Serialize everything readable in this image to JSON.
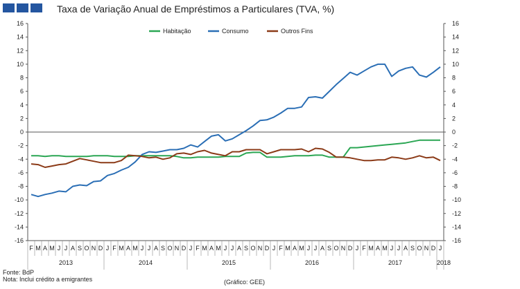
{
  "header": {
    "title": "Taxa de Variação Anual de Empréstimos a Particulares (TVA, %)"
  },
  "footer": {
    "source": "Fonte: BdP",
    "note": "Nota: Inclui crédito a emigrantes",
    "credit": "(Gráfico: GEE)"
  },
  "chart_data": {
    "type": "line",
    "title": "Taxa de Variação Anual de Empréstimos a Particulares (TVA, %)",
    "ylim": [
      -16,
      16
    ],
    "ytick_step": 2,
    "grid": false,
    "legend_position": "top",
    "month_labels": [
      "F",
      "M",
      "A",
      "M",
      "J",
      "J",
      "A",
      "S",
      "O",
      "N",
      "D",
      "J",
      "F",
      "M",
      "A",
      "M",
      "J",
      "J",
      "A",
      "S",
      "O",
      "N",
      "D",
      "J",
      "F",
      "M",
      "A",
      "M",
      "J",
      "J",
      "A",
      "S",
      "O",
      "N",
      "D",
      "J",
      "F",
      "M",
      "A",
      "M",
      "J",
      "J",
      "A",
      "S",
      "O",
      "N",
      "D",
      "J",
      "F",
      "M",
      "A",
      "M",
      "J",
      "J",
      "A",
      "S",
      "O",
      "N",
      "D",
      "J"
    ],
    "year_labels": [
      "2013",
      "2014",
      "2015",
      "2016",
      "2017",
      "2018"
    ],
    "x": [
      "2013-02",
      "2013-03",
      "2013-04",
      "2013-05",
      "2013-06",
      "2013-07",
      "2013-08",
      "2013-09",
      "2013-10",
      "2013-11",
      "2013-12",
      "2014-01",
      "2014-02",
      "2014-03",
      "2014-04",
      "2014-05",
      "2014-06",
      "2014-07",
      "2014-08",
      "2014-09",
      "2014-10",
      "2014-11",
      "2014-12",
      "2015-01",
      "2015-02",
      "2015-03",
      "2015-04",
      "2015-05",
      "2015-06",
      "2015-07",
      "2015-08",
      "2015-09",
      "2015-10",
      "2015-11",
      "2015-12",
      "2016-01",
      "2016-02",
      "2016-03",
      "2016-04",
      "2016-05",
      "2016-06",
      "2016-07",
      "2016-08",
      "2016-09",
      "2016-10",
      "2016-11",
      "2016-12",
      "2017-01",
      "2017-02",
      "2017-03",
      "2017-04",
      "2017-05",
      "2017-06",
      "2017-07",
      "2017-08",
      "2017-09",
      "2017-10",
      "2017-11",
      "2017-12",
      "2018-01"
    ],
    "series": [
      {
        "name": "Habitação",
        "color": "#2aa653",
        "values": [
          -3.5,
          -3.5,
          -3.6,
          -3.5,
          -3.5,
          -3.6,
          -3.6,
          -3.6,
          -3.6,
          -3.5,
          -3.5,
          -3.5,
          -3.6,
          -3.6,
          -3.6,
          -3.5,
          -3.5,
          -3.5,
          -3.5,
          -3.5,
          -3.5,
          -3.6,
          -3.8,
          -3.8,
          -3.7,
          -3.7,
          -3.7,
          -3.7,
          -3.6,
          -3.6,
          -3.6,
          -3.1,
          -3.0,
          -3.0,
          -3.7,
          -3.7,
          -3.7,
          -3.6,
          -3.5,
          -3.5,
          -3.5,
          -3.4,
          -3.4,
          -3.7,
          -3.7,
          -3.7,
          -2.3,
          -2.3,
          -2.2,
          -2.1,
          -2.0,
          -1.9,
          -1.8,
          -1.7,
          -1.6,
          -1.4,
          -1.2,
          -1.2,
          -1.2,
          -1.2
        ]
      },
      {
        "name": "Consumo",
        "color": "#2a6eb5",
        "values": [
          -9.2,
          -9.5,
          -9.2,
          -9.0,
          -8.7,
          -8.8,
          -8.0,
          -7.8,
          -7.9,
          -7.3,
          -7.2,
          -6.4,
          -6.1,
          -5.6,
          -5.2,
          -4.4,
          -3.3,
          -2.9,
          -3.0,
          -2.8,
          -2.6,
          -2.6,
          -2.4,
          -1.9,
          -2.2,
          -1.4,
          -0.6,
          -0.4,
          -1.3,
          -1.0,
          -0.4,
          0.2,
          0.9,
          1.7,
          1.8,
          2.2,
          2.8,
          3.5,
          3.5,
          3.7,
          5.1,
          5.2,
          5.0,
          6.0,
          7.0,
          7.9,
          8.8,
          8.4,
          9.0,
          9.6,
          10.0,
          10.0,
          8.2,
          9.0,
          9.4,
          9.6,
          8.4,
          8.1,
          8.8,
          9.6
        ]
      },
      {
        "name": "Outros Fins",
        "color": "#8b3a17",
        "values": [
          -4.7,
          -4.8,
          -5.2,
          -5.0,
          -4.8,
          -4.7,
          -4.3,
          -3.9,
          -4.1,
          -4.3,
          -4.5,
          -4.5,
          -4.5,
          -4.2,
          -3.4,
          -3.5,
          -3.6,
          -3.8,
          -3.7,
          -4.0,
          -3.8,
          -3.2,
          -3.1,
          -3.3,
          -2.9,
          -2.7,
          -3.1,
          -3.3,
          -3.5,
          -2.9,
          -2.9,
          -2.6,
          -2.6,
          -2.6,
          -3.2,
          -2.9,
          -2.6,
          -2.6,
          -2.6,
          -2.5,
          -2.9,
          -2.4,
          -2.5,
          -3.0,
          -3.7,
          -3.7,
          -3.8,
          -4.0,
          -4.2,
          -4.2,
          -4.1,
          -4.1,
          -3.7,
          -3.8,
          -4.0,
          -3.8,
          -3.5,
          -3.8,
          -3.7,
          -4.2
        ]
      }
    ]
  }
}
